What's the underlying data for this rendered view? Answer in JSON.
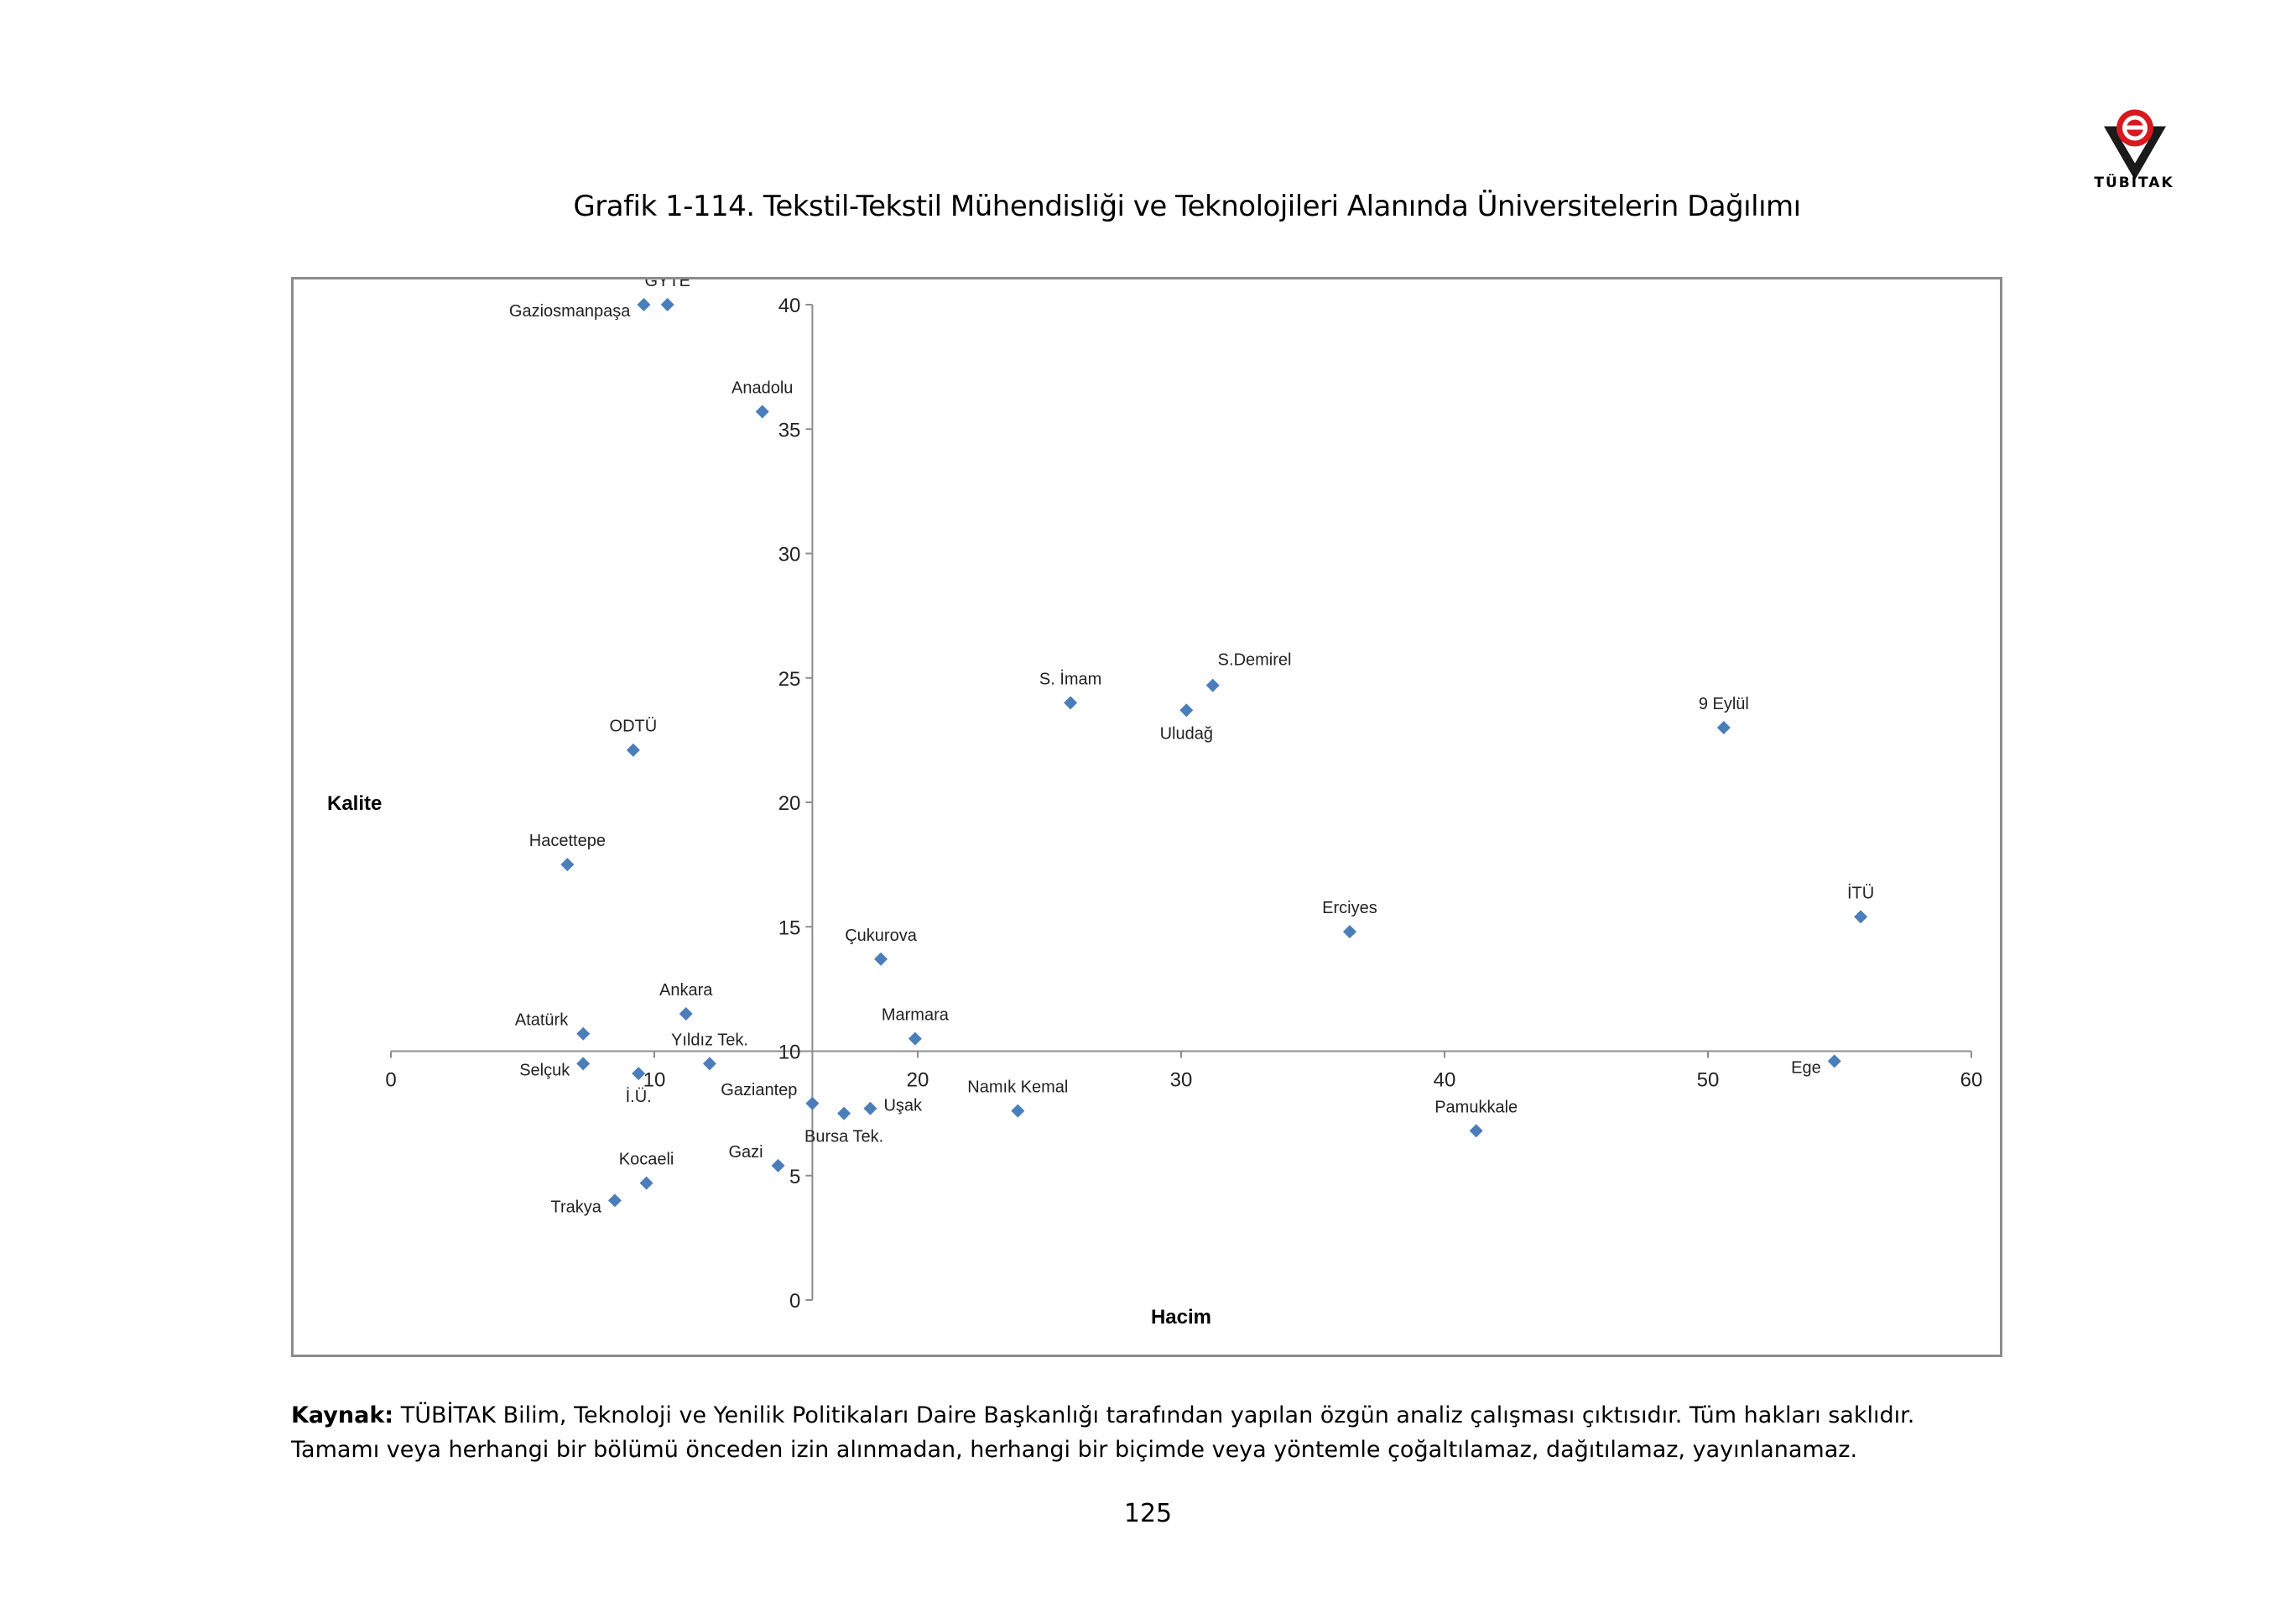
{
  "header": {
    "logo_text": "TÜBİTAK",
    "logo_colors": {
      "mark": "#1a1a1a",
      "ring": "#d71920"
    }
  },
  "title": "Grafik 1-114. Tekstil-Tekstil Mühendisliği ve Teknolojileri Alanında Üniversitelerin Dağılımı",
  "chart_data": {
    "type": "scatter",
    "xlabel": "Hacim",
    "ylabel": "Kalite",
    "xlim": [
      0,
      60
    ],
    "ylim": [
      0,
      40
    ],
    "x_ticks": [
      "0",
      "10",
      "20",
      "30",
      "40",
      "50",
      "60"
    ],
    "y_ticks": [
      "0",
      "5",
      "10",
      "15",
      "20",
      "25",
      "30",
      "35",
      "40"
    ],
    "x_axis_crosses_y_at": 10,
    "y_axis_crosses_x_at": 16,
    "grid": false,
    "marker": "diamond",
    "marker_color": "#4a7ebb",
    "points": [
      {
        "name": "Gaziosmanpaşa",
        "x": 9.6,
        "y": 40,
        "label_pos": "left"
      },
      {
        "name": "GYTE",
        "x": 10.5,
        "y": 40,
        "label_pos": "above"
      },
      {
        "name": "Anadolu",
        "x": 14.1,
        "y": 35.7,
        "label_pos": "above"
      },
      {
        "name": "ODTÜ",
        "x": 9.2,
        "y": 22.1,
        "label_pos": "above"
      },
      {
        "name": "Hacettepe",
        "x": 6.7,
        "y": 17.5,
        "label_pos": "above"
      },
      {
        "name": "Atatürk",
        "x": 7.3,
        "y": 10.7,
        "label_pos": "above-left"
      },
      {
        "name": "Ankara",
        "x": 11.2,
        "y": 11.5,
        "label_pos": "above"
      },
      {
        "name": "Yıldız Tek.",
        "x": 12.1,
        "y": 9.5,
        "label_pos": "above"
      },
      {
        "name": "Selçuk",
        "x": 7.3,
        "y": 9.5,
        "label_pos": "left"
      },
      {
        "name": "İ.Ü.",
        "x": 9.4,
        "y": 9.1,
        "label_pos": "below"
      },
      {
        "name": "Çukurova",
        "x": 18.6,
        "y": 13.7,
        "label_pos": "above"
      },
      {
        "name": "Marmara",
        "x": 19.9,
        "y": 10.5,
        "label_pos": "above"
      },
      {
        "name": "Gaziantep",
        "x": 16.0,
        "y": 7.9,
        "label_pos": "above-left"
      },
      {
        "name": "Bursa Tek.",
        "x": 17.2,
        "y": 7.5,
        "label_pos": "below"
      },
      {
        "name": "Uşak",
        "x": 18.2,
        "y": 7.7,
        "label_pos": "right"
      },
      {
        "name": "Namık Kemal",
        "x": 23.8,
        "y": 7.6,
        "label_pos": "above"
      },
      {
        "name": "Gazi",
        "x": 14.7,
        "y": 5.4,
        "label_pos": "above-left"
      },
      {
        "name": "Kocaeli",
        "x": 9.7,
        "y": 4.7,
        "label_pos": "above"
      },
      {
        "name": "Trakya",
        "x": 8.5,
        "y": 4.0,
        "label_pos": "left"
      },
      {
        "name": "S. İmam",
        "x": 25.8,
        "y": 24.0,
        "label_pos": "above"
      },
      {
        "name": "Uludağ",
        "x": 30.2,
        "y": 23.7,
        "label_pos": "below"
      },
      {
        "name": "S.Demirel",
        "x": 31.2,
        "y": 24.7,
        "label_pos": "above-right"
      },
      {
        "name": "Erciyes",
        "x": 36.4,
        "y": 14.8,
        "label_pos": "above"
      },
      {
        "name": "Pamukkale",
        "x": 41.2,
        "y": 6.8,
        "label_pos": "above"
      },
      {
        "name": "9 Eylül",
        "x": 50.6,
        "y": 23.0,
        "label_pos": "above"
      },
      {
        "name": "İTÜ",
        "x": 55.8,
        "y": 15.4,
        "label_pos": "above"
      },
      {
        "name": "Ege",
        "x": 54.8,
        "y": 9.6,
        "label_pos": "left"
      }
    ]
  },
  "source": {
    "label": "Kaynak:",
    "text": "TÜBİTAK Bilim, Teknoloji ve Yenilik Politikaları Daire Başkanlığı tarafından yapılan özgün analiz çalışması çıktısıdır. Tüm hakları saklıdır. Tamamı veya herhangi bir bölümü önceden izin alınmadan, herhangi bir biçimde veya yöntemle çoğaltılamaz, dağıtılamaz, yayınlanamaz."
  },
  "page_number": "125"
}
